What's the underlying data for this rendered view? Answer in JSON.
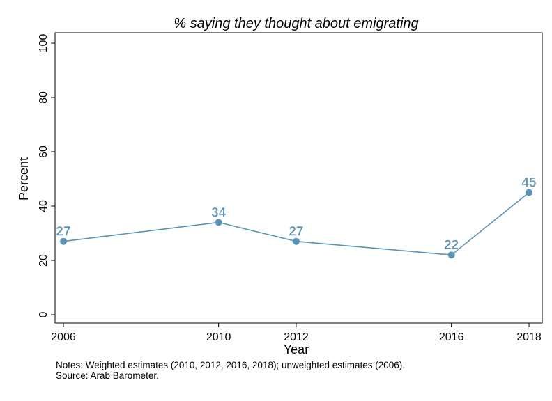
{
  "chart_data": {
    "type": "line",
    "title": "% saying they thought about emigrating",
    "xlabel": "Year",
    "ylabel": "Percent",
    "x": [
      "2006",
      "2010",
      "2012",
      "2016",
      "2018"
    ],
    "x_numeric": [
      2006,
      2010,
      2012,
      2016,
      2018
    ],
    "series": [
      {
        "values": [
          27,
          34,
          27,
          22,
          45
        ],
        "color": "#5b93b5"
      }
    ],
    "ylim": [
      0,
      100
    ],
    "xlim": [
      2006,
      2018
    ],
    "yticks": [
      0,
      20,
      40,
      60,
      80,
      100
    ],
    "grid": false,
    "data_labels": true
  },
  "notes": {
    "line1": "Notes: Weighted estimates (2010, 2012, 2016, 2018); unweighted estimates (2006).",
    "line2": "Source: Arab Barometer."
  }
}
